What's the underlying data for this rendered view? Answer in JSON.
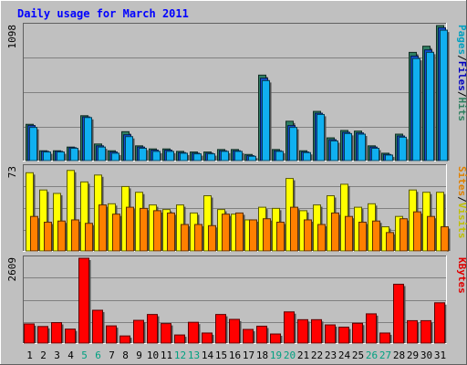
{
  "chart_data": {
    "type": "bar",
    "title": "Daily usage for March 2011",
    "days": [
      "1",
      "2",
      "3",
      "4",
      "5",
      "6",
      "7",
      "8",
      "9",
      "10",
      "11",
      "12",
      "13",
      "14",
      "15",
      "16",
      "17",
      "18",
      "19",
      "20",
      "21",
      "22",
      "23",
      "24",
      "25",
      "26",
      "27",
      "28",
      "29",
      "30",
      "31"
    ],
    "weekend_days": [
      "5",
      "6",
      "12",
      "13",
      "19",
      "20",
      "26",
      "27"
    ],
    "panels": [
      {
        "id": "hits",
        "max_label": "1098",
        "ylim": [
          0,
          1098
        ],
        "legend": [
          {
            "key": "pages",
            "text": "Pages",
            "color": "#00a0c0"
          },
          {
            "key": "sep1",
            "text": "/",
            "color": "#000000"
          },
          {
            "key": "files",
            "text": "Files",
            "color": "#0000c0"
          },
          {
            "key": "sep2",
            "text": "/",
            "color": "#000000"
          },
          {
            "key": "hits",
            "text": "Hits",
            "color": "#308060"
          }
        ],
        "series": [
          {
            "name": "Hits",
            "color": "#2f7f62",
            "values": [
              295,
              80,
              80,
              110,
              365,
              135,
              80,
              235,
              120,
              95,
              95,
              75,
              70,
              70,
              90,
              90,
              50,
              695,
              90,
              320,
              80,
              400,
              185,
              245,
              240,
              120,
              60,
              215,
              880,
              930,
              1098
            ]
          },
          {
            "name": "Files",
            "color": "#1050d0",
            "values": [
              285,
              75,
              75,
              105,
              355,
              120,
              70,
              210,
              110,
              85,
              85,
              65,
              60,
              60,
              80,
              80,
              40,
              670,
              80,
              285,
              70,
              385,
              170,
              230,
              225,
              110,
              50,
              200,
              850,
              900,
              1080
            ]
          },
          {
            "name": "Pages",
            "color": "#10b0f0",
            "values": [
              270,
              70,
              70,
              100,
              350,
              110,
              60,
              195,
              100,
              75,
              75,
              60,
              55,
              55,
              75,
              75,
              35,
              650,
              75,
              270,
              65,
              375,
              160,
              220,
              215,
              100,
              45,
              190,
              830,
              880,
              1060
            ]
          }
        ]
      },
      {
        "id": "visits",
        "max_label": "73",
        "ylim": [
          0,
          73
        ],
        "legend": [
          {
            "key": "sites",
            "text": "Sites",
            "color": "#e08000"
          },
          {
            "key": "sep",
            "text": "/",
            "color": "#000000"
          },
          {
            "key": "visits",
            "text": "Visits",
            "color": "#c0c000"
          }
        ],
        "series": [
          {
            "name": "Visits",
            "color": "#ffff00",
            "values": [
              68,
              53,
              50,
              70,
              60,
              66,
              41,
              56,
              51,
              40,
              36,
              40,
              33,
              48,
              36,
              32,
              27,
              38,
              37,
              63,
              35,
              40,
              48,
              58,
              38,
              41,
              21,
              30,
              53,
              51,
              51
            ]
          },
          {
            "name": "Sites",
            "color": "#ff8000",
            "values": [
              30,
              25,
              26,
              27,
              24,
              40,
              32,
              38,
              37,
              35,
              33,
              23,
              23,
              22,
              32,
              33,
              27,
              28,
              25,
              38,
              27,
              23,
              33,
              30,
              25,
              26,
              16,
              28,
              34,
              30,
              21
            ]
          }
        ]
      },
      {
        "id": "kbytes",
        "max_label": "2609",
        "ylim": [
          0,
          2609
        ],
        "legend": [
          {
            "key": "kbytes",
            "text": "KBytes",
            "color": "#e00000"
          }
        ],
        "series": [
          {
            "name": "KBytes",
            "color": "#ff0000",
            "values": [
              590,
              510,
              630,
              430,
              2609,
              1010,
              530,
              220,
              700,
              880,
              600,
              250,
              640,
              310,
              880,
              730,
              420,
              520,
              280,
              960,
              720,
              720,
              560,
              490,
              610,
              900,
              310,
              1810,
              690,
              690,
              1240
            ]
          }
        ]
      }
    ]
  }
}
